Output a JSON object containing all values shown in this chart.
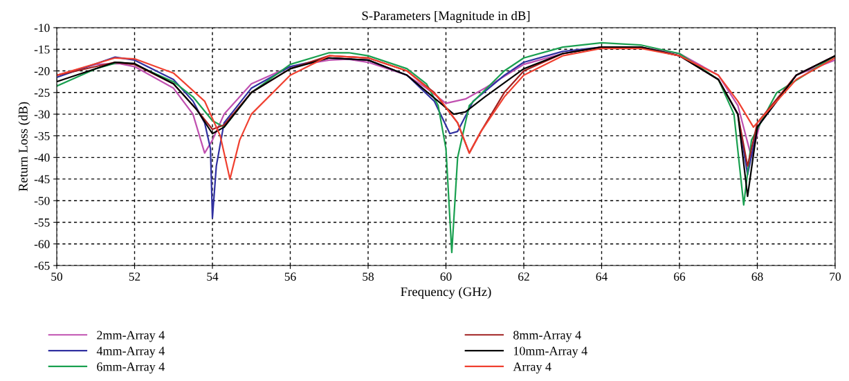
{
  "chart_data": {
    "type": "line",
    "title": "S-Parameters [Magnitude in dB]",
    "xlabel": "Frequency (GHz)",
    "ylabel": "Return Loss (dB)",
    "xlim": [
      50,
      70
    ],
    "xticks": [
      50,
      52,
      54,
      56,
      58,
      60,
      62,
      64,
      66,
      68,
      70
    ],
    "ylim": [
      -65,
      -10
    ],
    "yticks": [
      -65,
      -60,
      -55,
      -50,
      -45,
      -40,
      -35,
      -30,
      -25,
      -20,
      -15,
      -10
    ],
    "grid": true,
    "legend": "bottom",
    "marker": "none",
    "line_style": "solid",
    "series": [
      {
        "name": "2mm-Array 4",
        "color": "#c050b0",
        "x": [
          50,
          51,
          51.6,
          52,
          53,
          53.5,
          53.8,
          54.0,
          54.3,
          55,
          56,
          57,
          57.5,
          58,
          59,
          59.5,
          60,
          60.5,
          61,
          62,
          63,
          64,
          65,
          66,
          67,
          67.5,
          67.85,
          68.1,
          69,
          70
        ],
        "values": [
          -21,
          -18.5,
          -18.3,
          -19,
          -24,
          -30,
          -39,
          -36,
          -30,
          -23,
          -19,
          -17.5,
          -17.3,
          -18,
          -21,
          -24,
          -27.5,
          -26.5,
          -24,
          -18.5,
          -16,
          -14.5,
          -14.5,
          -16,
          -21,
          -28,
          -40,
          -31,
          -21,
          -17.5
        ]
      },
      {
        "name": "4mm-Array 4",
        "color": "#3030a0",
        "x": [
          50,
          51.5,
          52,
          53,
          53.5,
          53.8,
          53.95,
          54.0,
          54.1,
          54.3,
          55,
          56,
          57,
          58,
          59,
          59.7,
          60.1,
          60.3,
          60.7,
          61.5,
          62,
          63,
          64,
          65,
          66,
          67,
          67.5,
          67.75,
          68,
          69,
          70
        ],
        "values": [
          -21.5,
          -16.8,
          -17.5,
          -22,
          -27,
          -32,
          -38,
          -54,
          -42,
          -32,
          -24,
          -19,
          -17,
          -17.5,
          -21,
          -27,
          -34.5,
          -34,
          -27,
          -21,
          -18,
          -15.5,
          -14.5,
          -14.5,
          -16.5,
          -22,
          -30,
          -44,
          -33,
          -21,
          -16.5
        ]
      },
      {
        "name": "6mm-Array 4",
        "color": "#1aa050",
        "x": [
          50,
          51,
          51.6,
          52,
          53,
          53.5,
          54,
          54.3,
          55,
          56,
          57,
          57.5,
          58,
          59,
          59.5,
          59.8,
          60,
          60.15,
          60.3,
          60.6,
          61.5,
          62,
          63,
          64,
          65,
          66,
          67,
          67.4,
          67.65,
          67.85,
          68.5,
          70
        ],
        "values": [
          -23.5,
          -19.5,
          -18,
          -18.5,
          -22.5,
          -26,
          -31.5,
          -33,
          -25,
          -18.5,
          -15.8,
          -15.8,
          -16.5,
          -19.5,
          -23,
          -28,
          -38,
          -62,
          -40,
          -28,
          -20,
          -17,
          -14.5,
          -13.5,
          -14,
          -16,
          -22,
          -30,
          -51,
          -36,
          -25,
          -16.5
        ]
      },
      {
        "name": "8mm-Array 4",
        "color": "#a02020",
        "x": [
          50,
          51.5,
          52,
          53,
          53.6,
          54,
          54.3,
          55,
          56,
          57,
          58,
          59,
          59.7,
          60.3,
          60.6,
          60.9,
          61.5,
          62,
          63,
          64,
          65,
          66,
          67,
          67.5,
          67.75,
          68,
          69,
          70
        ],
        "values": [
          -21,
          -18,
          -18.5,
          -23,
          -29,
          -33.5,
          -32.5,
          -25,
          -19.5,
          -16.5,
          -17,
          -20,
          -25,
          -32,
          -39,
          -34,
          -25,
          -20,
          -16,
          -14.5,
          -14.5,
          -16.5,
          -22,
          -30,
          -42,
          -32,
          -21,
          -16.5
        ]
      },
      {
        "name": "10mm-Array 4",
        "color": "#000000",
        "x": [
          50,
          51.5,
          52,
          53,
          53.6,
          54,
          54.3,
          55,
          56,
          57,
          58,
          59,
          59.8,
          60.2,
          60.5,
          61,
          62,
          63,
          64,
          65,
          66,
          67,
          67.5,
          67.75,
          68,
          69,
          70
        ],
        "values": [
          -22.5,
          -18,
          -18.3,
          -23,
          -29,
          -34.5,
          -33,
          -25,
          -19.5,
          -17,
          -17.5,
          -21,
          -27,
          -30,
          -29.5,
          -26,
          -19.5,
          -16,
          -14.5,
          -14.5,
          -16.5,
          -22,
          -30,
          -49,
          -33,
          -21,
          -16.5
        ]
      },
      {
        "name": "Array 4",
        "color": "#f04030",
        "x": [
          50,
          51.5,
          52,
          53,
          53.8,
          54.2,
          54.45,
          54.7,
          55,
          56,
          57,
          58,
          59,
          59.8,
          60.3,
          60.6,
          60.9,
          61.5,
          62,
          63,
          64,
          65,
          66,
          67,
          67.5,
          67.9,
          68.3,
          69,
          70
        ],
        "values": [
          -21,
          -17,
          -17.2,
          -20.5,
          -27,
          -35,
          -45,
          -36,
          -30,
          -21,
          -16.5,
          -17,
          -20,
          -26,
          -32,
          -39,
          -34,
          -26,
          -21,
          -16.5,
          -14.8,
          -14.8,
          -16.5,
          -21,
          -27,
          -33,
          -29,
          -22,
          -17
        ]
      }
    ]
  }
}
